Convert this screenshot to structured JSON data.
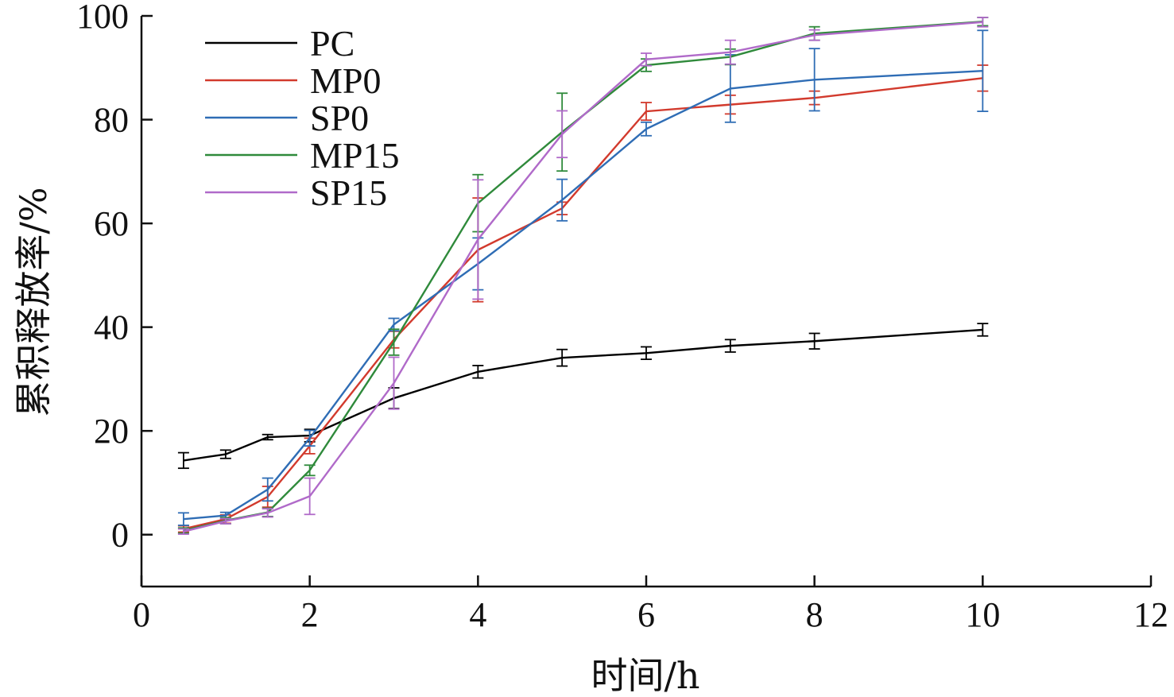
{
  "chart_data": {
    "type": "line",
    "xlabel": "时间/h",
    "ylabel": "累积释放率/%",
    "xlim": [
      0,
      12
    ],
    "ylim": [
      -10,
      100
    ],
    "x_ticks": [
      0,
      2,
      4,
      6,
      8,
      10,
      12
    ],
    "y_ticks": [
      0,
      20,
      40,
      60,
      80,
      100
    ],
    "x_tick_labels": [
      "0",
      "2",
      "4",
      "6",
      "8",
      "10",
      "12"
    ],
    "y_tick_labels": [
      "0",
      "20",
      "40",
      "60",
      "80",
      "100"
    ],
    "legend_position": "top-left",
    "grid": false,
    "series": [
      {
        "name": "PC",
        "color": "#000000",
        "points": [
          {
            "x": 0.5,
            "y": 14.3,
            "err": 1.5
          },
          {
            "x": 1,
            "y": 15.5,
            "err": 0.8
          },
          {
            "x": 1.5,
            "y": 18.8,
            "err": 0.5
          },
          {
            "x": 2,
            "y": 19.1,
            "err": 1.2
          },
          {
            "x": 3,
            "y": 26.3,
            "err": 2.0
          },
          {
            "x": 4,
            "y": 31.4,
            "err": 1.2
          },
          {
            "x": 5,
            "y": 34.1,
            "err": 1.6
          },
          {
            "x": 6,
            "y": 35.0,
            "err": 1.2
          },
          {
            "x": 7,
            "y": 36.4,
            "err": 1.2
          },
          {
            "x": 8,
            "y": 37.3,
            "err": 1.5
          },
          {
            "x": 10,
            "y": 39.5,
            "err": 1.2
          }
        ]
      },
      {
        "name": "MP0",
        "color": "#d23a2d",
        "points": [
          {
            "x": 0.5,
            "y": 1.1,
            "err": 0.6
          },
          {
            "x": 1,
            "y": 3.0,
            "err": 0.8
          },
          {
            "x": 1.5,
            "y": 7.3,
            "err": 2.0
          },
          {
            "x": 2,
            "y": 17.1,
            "err": 1.5
          },
          {
            "x": 3,
            "y": 37.6,
            "err": 1.6
          },
          {
            "x": 4,
            "y": 54.9,
            "err": 10.0
          },
          {
            "x": 5,
            "y": 62.9,
            "err": 1.2
          },
          {
            "x": 6,
            "y": 81.6,
            "err": 1.7
          },
          {
            "x": 7,
            "y": 82.9,
            "err": 1.8
          },
          {
            "x": 8,
            "y": 84.2,
            "err": 1.3
          },
          {
            "x": 10,
            "y": 88.0,
            "err": 2.5
          }
        ]
      },
      {
        "name": "SP0",
        "color": "#2f6db5",
        "points": [
          {
            "x": 0.5,
            "y": 3.0,
            "err": 1.2
          },
          {
            "x": 1,
            "y": 3.7,
            "err": 0.6
          },
          {
            "x": 1.5,
            "y": 8.7,
            "err": 2.2
          },
          {
            "x": 2,
            "y": 18.6,
            "err": 1.5
          },
          {
            "x": 3,
            "y": 40.5,
            "err": 1.2
          },
          {
            "x": 4,
            "y": 52.2,
            "err": 5.0
          },
          {
            "x": 5,
            "y": 64.5,
            "err": 4.0
          },
          {
            "x": 6,
            "y": 78.2,
            "err": 1.3
          },
          {
            "x": 7,
            "y": 86.0,
            "err": 6.5
          },
          {
            "x": 8,
            "y": 87.7,
            "err": 6.0
          },
          {
            "x": 10,
            "y": 89.4,
            "err": 7.8
          }
        ]
      },
      {
        "name": "MP15",
        "color": "#2f8a3b",
        "points": [
          {
            "x": 0.5,
            "y": 0.8,
            "err": 0.5
          },
          {
            "x": 1,
            "y": 2.7,
            "err": 0.6
          },
          {
            "x": 1.5,
            "y": 4.3,
            "err": 0.8
          },
          {
            "x": 2,
            "y": 12.4,
            "err": 1.0
          },
          {
            "x": 3,
            "y": 37.1,
            "err": 2.5
          },
          {
            "x": 4,
            "y": 63.9,
            "err": 5.5
          },
          {
            "x": 5,
            "y": 77.6,
            "err": 7.5
          },
          {
            "x": 6,
            "y": 90.5,
            "err": 1.2
          },
          {
            "x": 7,
            "y": 92.1,
            "err": 1.5
          },
          {
            "x": 8,
            "y": 96.6,
            "err": 1.3
          },
          {
            "x": 10,
            "y": 98.9,
            "err": 0.8
          }
        ]
      },
      {
        "name": "SP15",
        "color": "#b06ac9",
        "points": [
          {
            "x": 0.5,
            "y": 0.6,
            "err": 0.5
          },
          {
            "x": 1,
            "y": 2.6,
            "err": 0.5
          },
          {
            "x": 1.5,
            "y": 4.2,
            "err": 0.8
          },
          {
            "x": 2,
            "y": 7.4,
            "err": 3.5
          },
          {
            "x": 3,
            "y": 29.2,
            "err": 5.0
          },
          {
            "x": 4,
            "y": 56.9,
            "err": 11.5
          },
          {
            "x": 5,
            "y": 77.2,
            "err": 4.5
          },
          {
            "x": 6,
            "y": 91.6,
            "err": 1.2
          },
          {
            "x": 7,
            "y": 93.0,
            "err": 2.3
          },
          {
            "x": 8,
            "y": 96.3,
            "err": 1.0
          },
          {
            "x": 10,
            "y": 98.8,
            "err": 0.9
          }
        ]
      }
    ]
  }
}
